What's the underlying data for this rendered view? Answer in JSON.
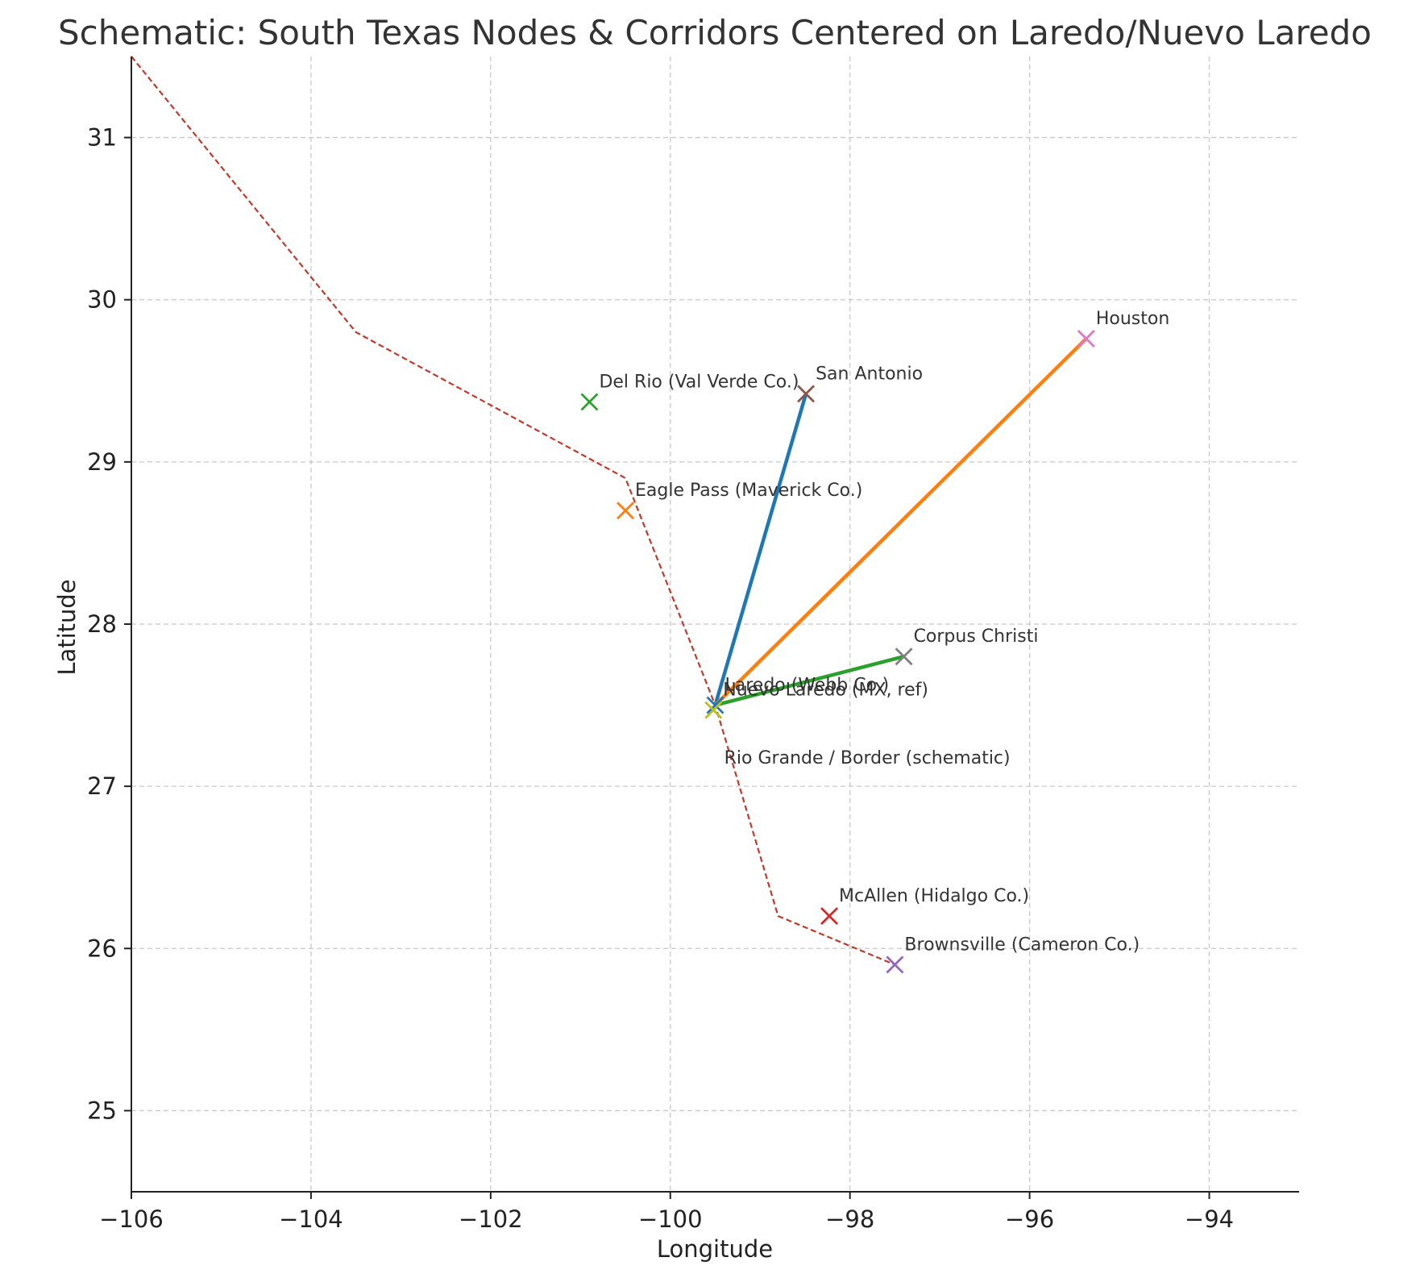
{
  "chart_data": {
    "type": "scatter",
    "title": "Schematic: South Texas Nodes & Corridors Centered on Laredo/Nuevo Laredo",
    "xlabel": "Longitude",
    "ylabel": "Latitude",
    "xlim": [
      -106,
      -93
    ],
    "ylim": [
      24.5,
      31.5
    ],
    "xticks": [
      -106,
      -104,
      -102,
      -100,
      -98,
      -96,
      -94
    ],
    "yticks": [
      25,
      26,
      27,
      28,
      29,
      30,
      31
    ],
    "xtick_labels": [
      "−106",
      "−104",
      "−102",
      "−100",
      "−98",
      "−96",
      "−94"
    ],
    "ytick_labels": [
      "25",
      "26",
      "27",
      "28",
      "29",
      "30",
      "31"
    ],
    "grid": true,
    "points": [
      {
        "label": "Laredo (Webb Co.)",
        "x": -99.5,
        "y": 27.5,
        "color": "#1f77b4"
      },
      {
        "label": "Eagle Pass (Maverick Co.)",
        "x": -100.5,
        "y": 28.7,
        "color": "#ff7f0e"
      },
      {
        "label": "Del Rio (Val Verde Co.)",
        "x": -100.9,
        "y": 29.37,
        "color": "#2ca02c"
      },
      {
        "label": "McAllen (Hidalgo Co.)",
        "x": -98.23,
        "y": 26.2,
        "color": "#d62728"
      },
      {
        "label": "Brownsville (Cameron Co.)",
        "x": -97.5,
        "y": 25.9,
        "color": "#9467bd"
      },
      {
        "label": "San Antonio",
        "x": -98.49,
        "y": 29.42,
        "color": "#8c564b"
      },
      {
        "label": "Houston",
        "x": -95.37,
        "y": 29.76,
        "color": "#e377c2"
      },
      {
        "label": "Corpus Christi",
        "x": -97.4,
        "y": 27.8,
        "color": "#7f7f7f"
      },
      {
        "label": "Nuevo Laredo (MX, ref)",
        "x": -99.52,
        "y": 27.47,
        "color": "#bcbd22"
      }
    ],
    "corridors": [
      {
        "from": [
          -99.5,
          27.5
        ],
        "to": [
          -98.49,
          29.42
        ],
        "color": "#1f77b4"
      },
      {
        "from": [
          -99.5,
          27.5
        ],
        "to": [
          -95.37,
          29.76
        ],
        "color": "#ff7f0e"
      },
      {
        "from": [
          -99.5,
          27.5
        ],
        "to": [
          -97.4,
          27.8
        ],
        "color": "#2ca02c"
      }
    ],
    "border": {
      "label": "Rio Grande / Border (schematic)",
      "color": "#c0392b",
      "x": [
        -106,
        -103.5,
        -100.5,
        -99.5,
        -98.8,
        -97.5
      ],
      "y": [
        31.5,
        29.8,
        28.9,
        27.5,
        26.2,
        25.9
      ],
      "label_x": -99.4,
      "label_y": 27.18
    }
  }
}
